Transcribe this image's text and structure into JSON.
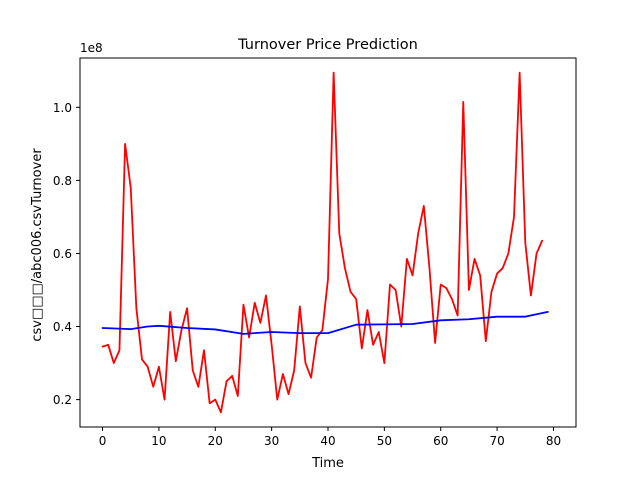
{
  "chart_data": {
    "type": "line",
    "title": "Turnover Price Prediction",
    "xlabel": "Time",
    "ylabel": "csv□□□/abc006.csvTurnover",
    "offset_label": "1e8",
    "xlim": [
      -4,
      84
    ],
    "ylim": [
      0.125,
      1.135
    ],
    "x_ticks": [
      0,
      10,
      20,
      30,
      40,
      50,
      60,
      70,
      80
    ],
    "x_tick_labels": [
      "0",
      "10",
      "20",
      "30",
      "40",
      "50",
      "60",
      "70",
      "80"
    ],
    "y_ticks": [
      0.2,
      0.4,
      0.6,
      0.8,
      1.0
    ],
    "y_tick_labels": [
      "0.2",
      "0.4",
      "0.6",
      "0.8",
      "1.0"
    ],
    "grid": false,
    "series": [
      {
        "color": "#ff0000",
        "x": [
          0,
          1,
          2,
          3,
          4,
          5,
          6,
          7,
          8,
          9,
          10,
          11,
          12,
          13,
          14,
          15,
          16,
          17,
          18,
          19,
          20,
          21,
          22,
          23,
          24,
          25,
          26,
          27,
          28,
          29,
          30,
          31,
          32,
          33,
          34,
          35,
          36,
          37,
          38,
          39,
          40,
          41,
          42,
          43,
          44,
          45,
          46,
          47,
          48,
          49,
          50,
          51,
          52,
          53,
          54,
          55,
          56,
          57,
          58,
          59,
          60,
          61,
          62,
          63,
          64,
          65,
          66,
          67,
          68,
          69,
          70,
          71,
          72,
          73,
          74,
          75,
          76,
          77,
          78
        ],
        "values": [
          0.345,
          0.35,
          0.3,
          0.335,
          0.9,
          0.78,
          0.45,
          0.31,
          0.29,
          0.235,
          0.29,
          0.2,
          0.44,
          0.305,
          0.39,
          0.45,
          0.28,
          0.235,
          0.335,
          0.19,
          0.2,
          0.165,
          0.25,
          0.265,
          0.21,
          0.46,
          0.37,
          0.465,
          0.41,
          0.485,
          0.35,
          0.2,
          0.27,
          0.215,
          0.28,
          0.455,
          0.3,
          0.26,
          0.37,
          0.39,
          0.53,
          1.095,
          0.655,
          0.56,
          0.495,
          0.475,
          0.34,
          0.445,
          0.35,
          0.385,
          0.3,
          0.515,
          0.5,
          0.4,
          0.585,
          0.54,
          0.655,
          0.73,
          0.56,
          0.355,
          0.515,
          0.505,
          0.475,
          0.43,
          1.015,
          0.5,
          0.585,
          0.54,
          0.36,
          0.495,
          0.545,
          0.56,
          0.6,
          0.7,
          1.095,
          0.63,
          0.485,
          0.6,
          0.635
        ]
      },
      {
        "color": "#0000ff",
        "x": [
          0,
          5,
          8,
          10,
          15,
          20,
          25,
          30,
          35,
          40,
          45,
          50,
          55,
          60,
          65,
          70,
          75,
          79
        ],
        "values": [
          0.396,
          0.393,
          0.4,
          0.402,
          0.396,
          0.392,
          0.38,
          0.385,
          0.382,
          0.382,
          0.405,
          0.406,
          0.407,
          0.417,
          0.42,
          0.427,
          0.427,
          0.44
        ]
      }
    ]
  }
}
